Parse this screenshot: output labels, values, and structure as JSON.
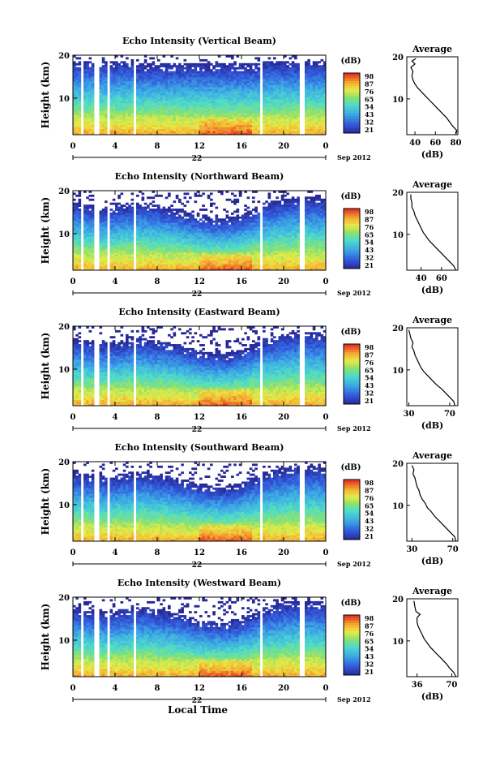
{
  "figure": {
    "xaxis_title": "Local Time",
    "date_label": "Sep 2012",
    "day_label": "22",
    "colorbar_unit": "(dB)",
    "profile_title": "Average",
    "profile_xlabel": "(dB)",
    "ylabel": "Height (km)"
  },
  "chart_data": [
    {
      "type": "heatmap",
      "title": "Echo Intensity (Vertical Beam)",
      "ylabel": "Height (km)",
      "xlabel": "Local Time",
      "x_ticks": [
        "0",
        "4",
        "8",
        "12",
        "16",
        "20",
        "0"
      ],
      "x_range": [
        0,
        24
      ],
      "y_ticks": [
        "10",
        "20"
      ],
      "y_range": [
        1.5,
        20
      ],
      "colorbar": {
        "unit": "(dB)",
        "ticks": [
          "98",
          "87",
          "76",
          "65",
          "54",
          "43",
          "32",
          "21"
        ],
        "range": [
          21,
          98
        ]
      },
      "profile": {
        "title": "Average",
        "xlabel": "(dB)",
        "x_ticks": [
          "40",
          "60",
          "80"
        ],
        "x_range": [
          32,
          82
        ],
        "y_ticks": [
          "10",
          "20"
        ],
        "points": [
          [
            80,
            1.5
          ],
          [
            81,
            2.5
          ],
          [
            77,
            3.5
          ],
          [
            74,
            4.5
          ],
          [
            71,
            5.5
          ],
          [
            67,
            6.5
          ],
          [
            63,
            7.5
          ],
          [
            59,
            8.5
          ],
          [
            55,
            9.5
          ],
          [
            51,
            10.5
          ],
          [
            47,
            11.5
          ],
          [
            43,
            12.5
          ],
          [
            40,
            13.5
          ],
          [
            38,
            14.5
          ],
          [
            37,
            15.5
          ],
          [
            38,
            16.5
          ],
          [
            36,
            17.5
          ],
          [
            40,
            18.3
          ],
          [
            37,
            19
          ],
          [
            41,
            19.6
          ]
        ]
      }
    },
    {
      "type": "heatmap",
      "title": "Echo Intensity (Northward Beam)",
      "ylabel": "Height (km)",
      "xlabel": "Local Time",
      "x_ticks": [
        "0",
        "4",
        "8",
        "12",
        "16",
        "20",
        "0"
      ],
      "x_range": [
        0,
        24
      ],
      "y_ticks": [
        "10",
        "20"
      ],
      "y_range": [
        1.5,
        20
      ],
      "colorbar": {
        "unit": "(dB)",
        "ticks": [
          "98",
          "87",
          "76",
          "65",
          "54",
          "43",
          "32",
          "21"
        ],
        "range": [
          21,
          98
        ]
      },
      "profile": {
        "title": "Average",
        "xlabel": "(dB)",
        "x_ticks": [
          "40",
          "60"
        ],
        "x_range": [
          26,
          76
        ],
        "y_ticks": [
          "10",
          "20"
        ],
        "points": [
          [
            74,
            1.5
          ],
          [
            72,
            2.5
          ],
          [
            68,
            3.5
          ],
          [
            64,
            4.5
          ],
          [
            60,
            5.5
          ],
          [
            56,
            6.5
          ],
          [
            52,
            7.5
          ],
          [
            48,
            8.5
          ],
          [
            45,
            9.5
          ],
          [
            42,
            10.5
          ],
          [
            40,
            11.5
          ],
          [
            38,
            12.5
          ],
          [
            36,
            13.5
          ],
          [
            34,
            14.5
          ],
          [
            33,
            15.5
          ],
          [
            31,
            16.5
          ],
          [
            31,
            17.5
          ],
          [
            30,
            18.5
          ],
          [
            30,
            19.5
          ]
        ]
      }
    },
    {
      "type": "heatmap",
      "title": "Echo Intensity (Eastward Beam)",
      "ylabel": "Height (km)",
      "xlabel": "Local Time",
      "x_ticks": [
        "0",
        "4",
        "8",
        "12",
        "16",
        "20",
        "0"
      ],
      "x_range": [
        0,
        24
      ],
      "y_ticks": [
        "10",
        "20"
      ],
      "y_range": [
        1.5,
        20
      ],
      "colorbar": {
        "unit": "(dB)",
        "ticks": [
          "98",
          "87",
          "76",
          "65",
          "54",
          "43",
          "32",
          "21"
        ],
        "range": [
          21,
          98
        ]
      },
      "profile": {
        "title": "Average",
        "xlabel": "(dB)",
        "x_ticks": [
          "30",
          "70"
        ],
        "x_range": [
          28,
          78
        ],
        "y_ticks": [
          "10",
          "20"
        ],
        "points": [
          [
            75,
            1.5
          ],
          [
            74,
            2.5
          ],
          [
            70,
            3.5
          ],
          [
            66,
            4.5
          ],
          [
            62,
            5.5
          ],
          [
            57,
            6.5
          ],
          [
            53,
            7.5
          ],
          [
            49,
            8.5
          ],
          [
            45,
            9.5
          ],
          [
            42,
            10.5
          ],
          [
            40,
            11.5
          ],
          [
            38,
            12.5
          ],
          [
            36,
            13.5
          ],
          [
            35,
            14.5
          ],
          [
            33,
            15.5
          ],
          [
            34,
            16.5
          ],
          [
            32,
            17.5
          ],
          [
            31,
            18.5
          ],
          [
            30,
            19.5
          ]
        ]
      }
    },
    {
      "type": "heatmap",
      "title": "Echo Intensity (Southward Beam)",
      "ylabel": "Height (km)",
      "xlabel": "Local Time",
      "x_ticks": [
        "0",
        "4",
        "8",
        "12",
        "16",
        "20",
        "0"
      ],
      "x_range": [
        0,
        24
      ],
      "y_ticks": [
        "10",
        "20"
      ],
      "y_range": [
        1.5,
        20
      ],
      "colorbar": {
        "unit": "(dB)",
        "ticks": [
          "98",
          "87",
          "76",
          "65",
          "54",
          "43",
          "32",
          "21"
        ],
        "range": [
          21,
          98
        ]
      },
      "profile": {
        "title": "Average",
        "xlabel": "(dB)",
        "x_ticks": [
          "30",
          "70"
        ],
        "x_range": [
          25,
          75
        ],
        "y_ticks": [
          "10",
          "20"
        ],
        "points": [
          [
            73,
            1.5
          ],
          [
            72,
            2.5
          ],
          [
            68,
            3.5
          ],
          [
            64,
            4.5
          ],
          [
            60,
            5.5
          ],
          [
            56,
            6.5
          ],
          [
            52,
            7.5
          ],
          [
            49,
            8.5
          ],
          [
            45,
            9.5
          ],
          [
            43,
            10.5
          ],
          [
            40,
            11.5
          ],
          [
            38,
            12.5
          ],
          [
            37,
            13.5
          ],
          [
            35,
            14.5
          ],
          [
            34,
            15.5
          ],
          [
            33,
            16.5
          ],
          [
            31,
            17.5
          ],
          [
            32,
            18.5
          ],
          [
            30,
            19.5
          ]
        ]
      }
    },
    {
      "type": "heatmap",
      "title": "Echo Intensity (Westward Beam)",
      "ylabel": "Height (km)",
      "xlabel": "Local Time",
      "x_ticks": [
        "0",
        "4",
        "8",
        "12",
        "16",
        "20",
        "0"
      ],
      "x_range": [
        0,
        24
      ],
      "y_ticks": [
        "10",
        "20"
      ],
      "y_range": [
        1.5,
        20
      ],
      "colorbar": {
        "unit": "(dB)",
        "ticks": [
          "98",
          "87",
          "76",
          "65",
          "54",
          "43",
          "32",
          "21"
        ],
        "range": [
          21,
          98
        ]
      },
      "profile": {
        "title": "Average",
        "xlabel": "(dB)",
        "x_ticks": [
          "36",
          "70"
        ],
        "x_range": [
          26,
          76
        ],
        "y_ticks": [
          "10",
          "20"
        ],
        "points": [
          [
            74,
            1.5
          ],
          [
            72,
            2.5
          ],
          [
            68,
            3.5
          ],
          [
            65,
            4.5
          ],
          [
            61,
            5.5
          ],
          [
            57,
            6.5
          ],
          [
            53,
            7.5
          ],
          [
            49,
            8.5
          ],
          [
            46,
            9.5
          ],
          [
            43,
            10.5
          ],
          [
            41,
            11.5
          ],
          [
            39,
            12.5
          ],
          [
            37,
            13.5
          ],
          [
            36,
            14.5
          ],
          [
            36,
            15.5
          ],
          [
            39,
            16.3
          ],
          [
            35,
            17
          ],
          [
            34,
            18
          ],
          [
            33,
            19.5
          ]
        ]
      }
    }
  ]
}
